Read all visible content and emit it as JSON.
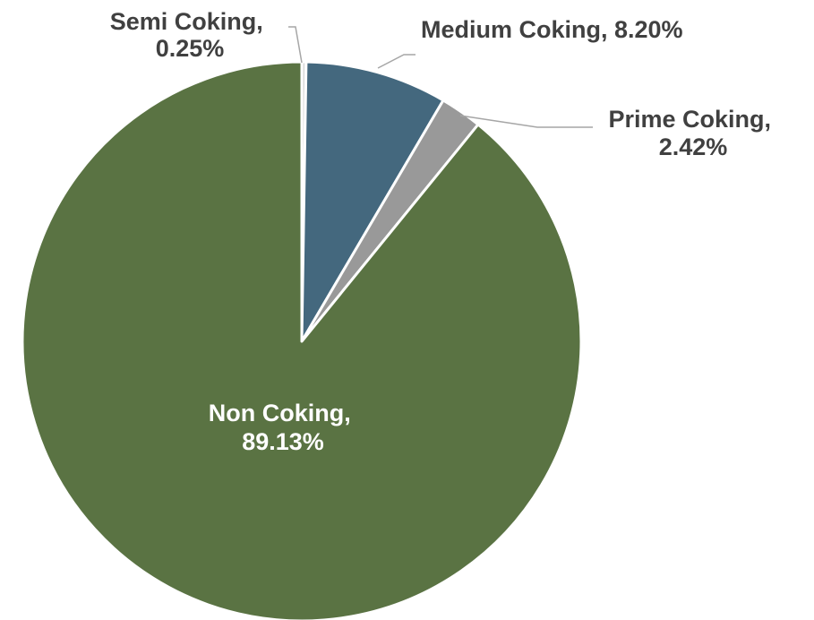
{
  "chart_data": {
    "type": "pie",
    "title": "",
    "slices": [
      {
        "category": "Semi Coking",
        "value": 0.25,
        "label_line1": "Semi Coking,",
        "label_line2": "0.25%",
        "color": "#d9d9d9",
        "label_color": "#404040"
      },
      {
        "category": "Medium Coking",
        "value": 8.2,
        "label_line1": "Medium Coking, 8.20%",
        "label_line2": "",
        "color": "#44687e",
        "label_color": "#404040"
      },
      {
        "category": "Prime Coking",
        "value": 2.42,
        "label_line1": "Prime Coking,",
        "label_line2": "2.42%",
        "color": "#999999",
        "label_color": "#404040"
      },
      {
        "category": "Non Coking",
        "value": 89.13,
        "label_line1": "Non Coking,",
        "label_line2": "89.13%",
        "color": "#5a7343",
        "label_color": "#ffffff"
      }
    ],
    "start_angle": "12 o'clock",
    "direction": "clockwise",
    "legend": "none"
  }
}
